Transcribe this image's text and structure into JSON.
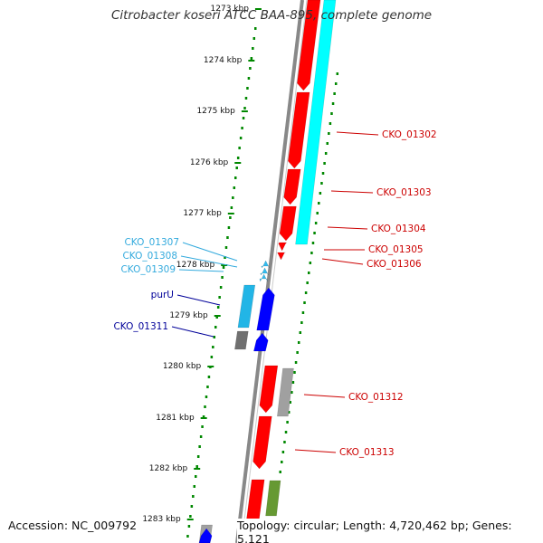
{
  "title": "Citrobacter koseri ATCC BAA-895, complete genome",
  "accession": "Accession: NC_009792",
  "summary": "Topology: circular; Length: 4,720,462 bp; Genes: 5,121",
  "colors": {
    "forward_cds": "#ff0000",
    "reverse_cds": "#0000ff",
    "rna": "#00ffff",
    "other": "#a0a0a0",
    "misc": "#669933",
    "backbone": "#888888",
    "ticks": "#008800",
    "labels_forward": "#cc0000",
    "labels_reverse": "#000099",
    "labels_rna": "#33aacc"
  },
  "ticks": [
    {
      "label": "1273 kbp"
    },
    {
      "label": "1274 kbp"
    },
    {
      "label": "1275 kbp"
    },
    {
      "label": "1276 kbp"
    },
    {
      "label": "1277 kbp"
    },
    {
      "label": "1278 kbp"
    },
    {
      "label": "1279 kbp"
    },
    {
      "label": "1280 kbp"
    },
    {
      "label": "1281 kbp"
    },
    {
      "label": "1282 kbp"
    },
    {
      "label": "1283 kbp"
    }
  ],
  "gene_labels": [
    {
      "text": "CKO_01302",
      "group": "forward"
    },
    {
      "text": "CKO_01303",
      "group": "forward"
    },
    {
      "text": "CKO_01304",
      "group": "forward"
    },
    {
      "text": "CKO_01305",
      "group": "forward"
    },
    {
      "text": "CKO_01306",
      "group": "forward"
    },
    {
      "text": "CKO_01307",
      "group": "rna"
    },
    {
      "text": "CKO_01308",
      "group": "rna"
    },
    {
      "text": "CKO_01309",
      "group": "rna"
    },
    {
      "text": "purU",
      "group": "reverse"
    },
    {
      "text": "CKO_01311",
      "group": "reverse"
    },
    {
      "text": "CKO_01312",
      "group": "forward"
    },
    {
      "text": "CKO_01313",
      "group": "forward"
    }
  ],
  "legend": {
    "icon": "genome-map-icon"
  }
}
